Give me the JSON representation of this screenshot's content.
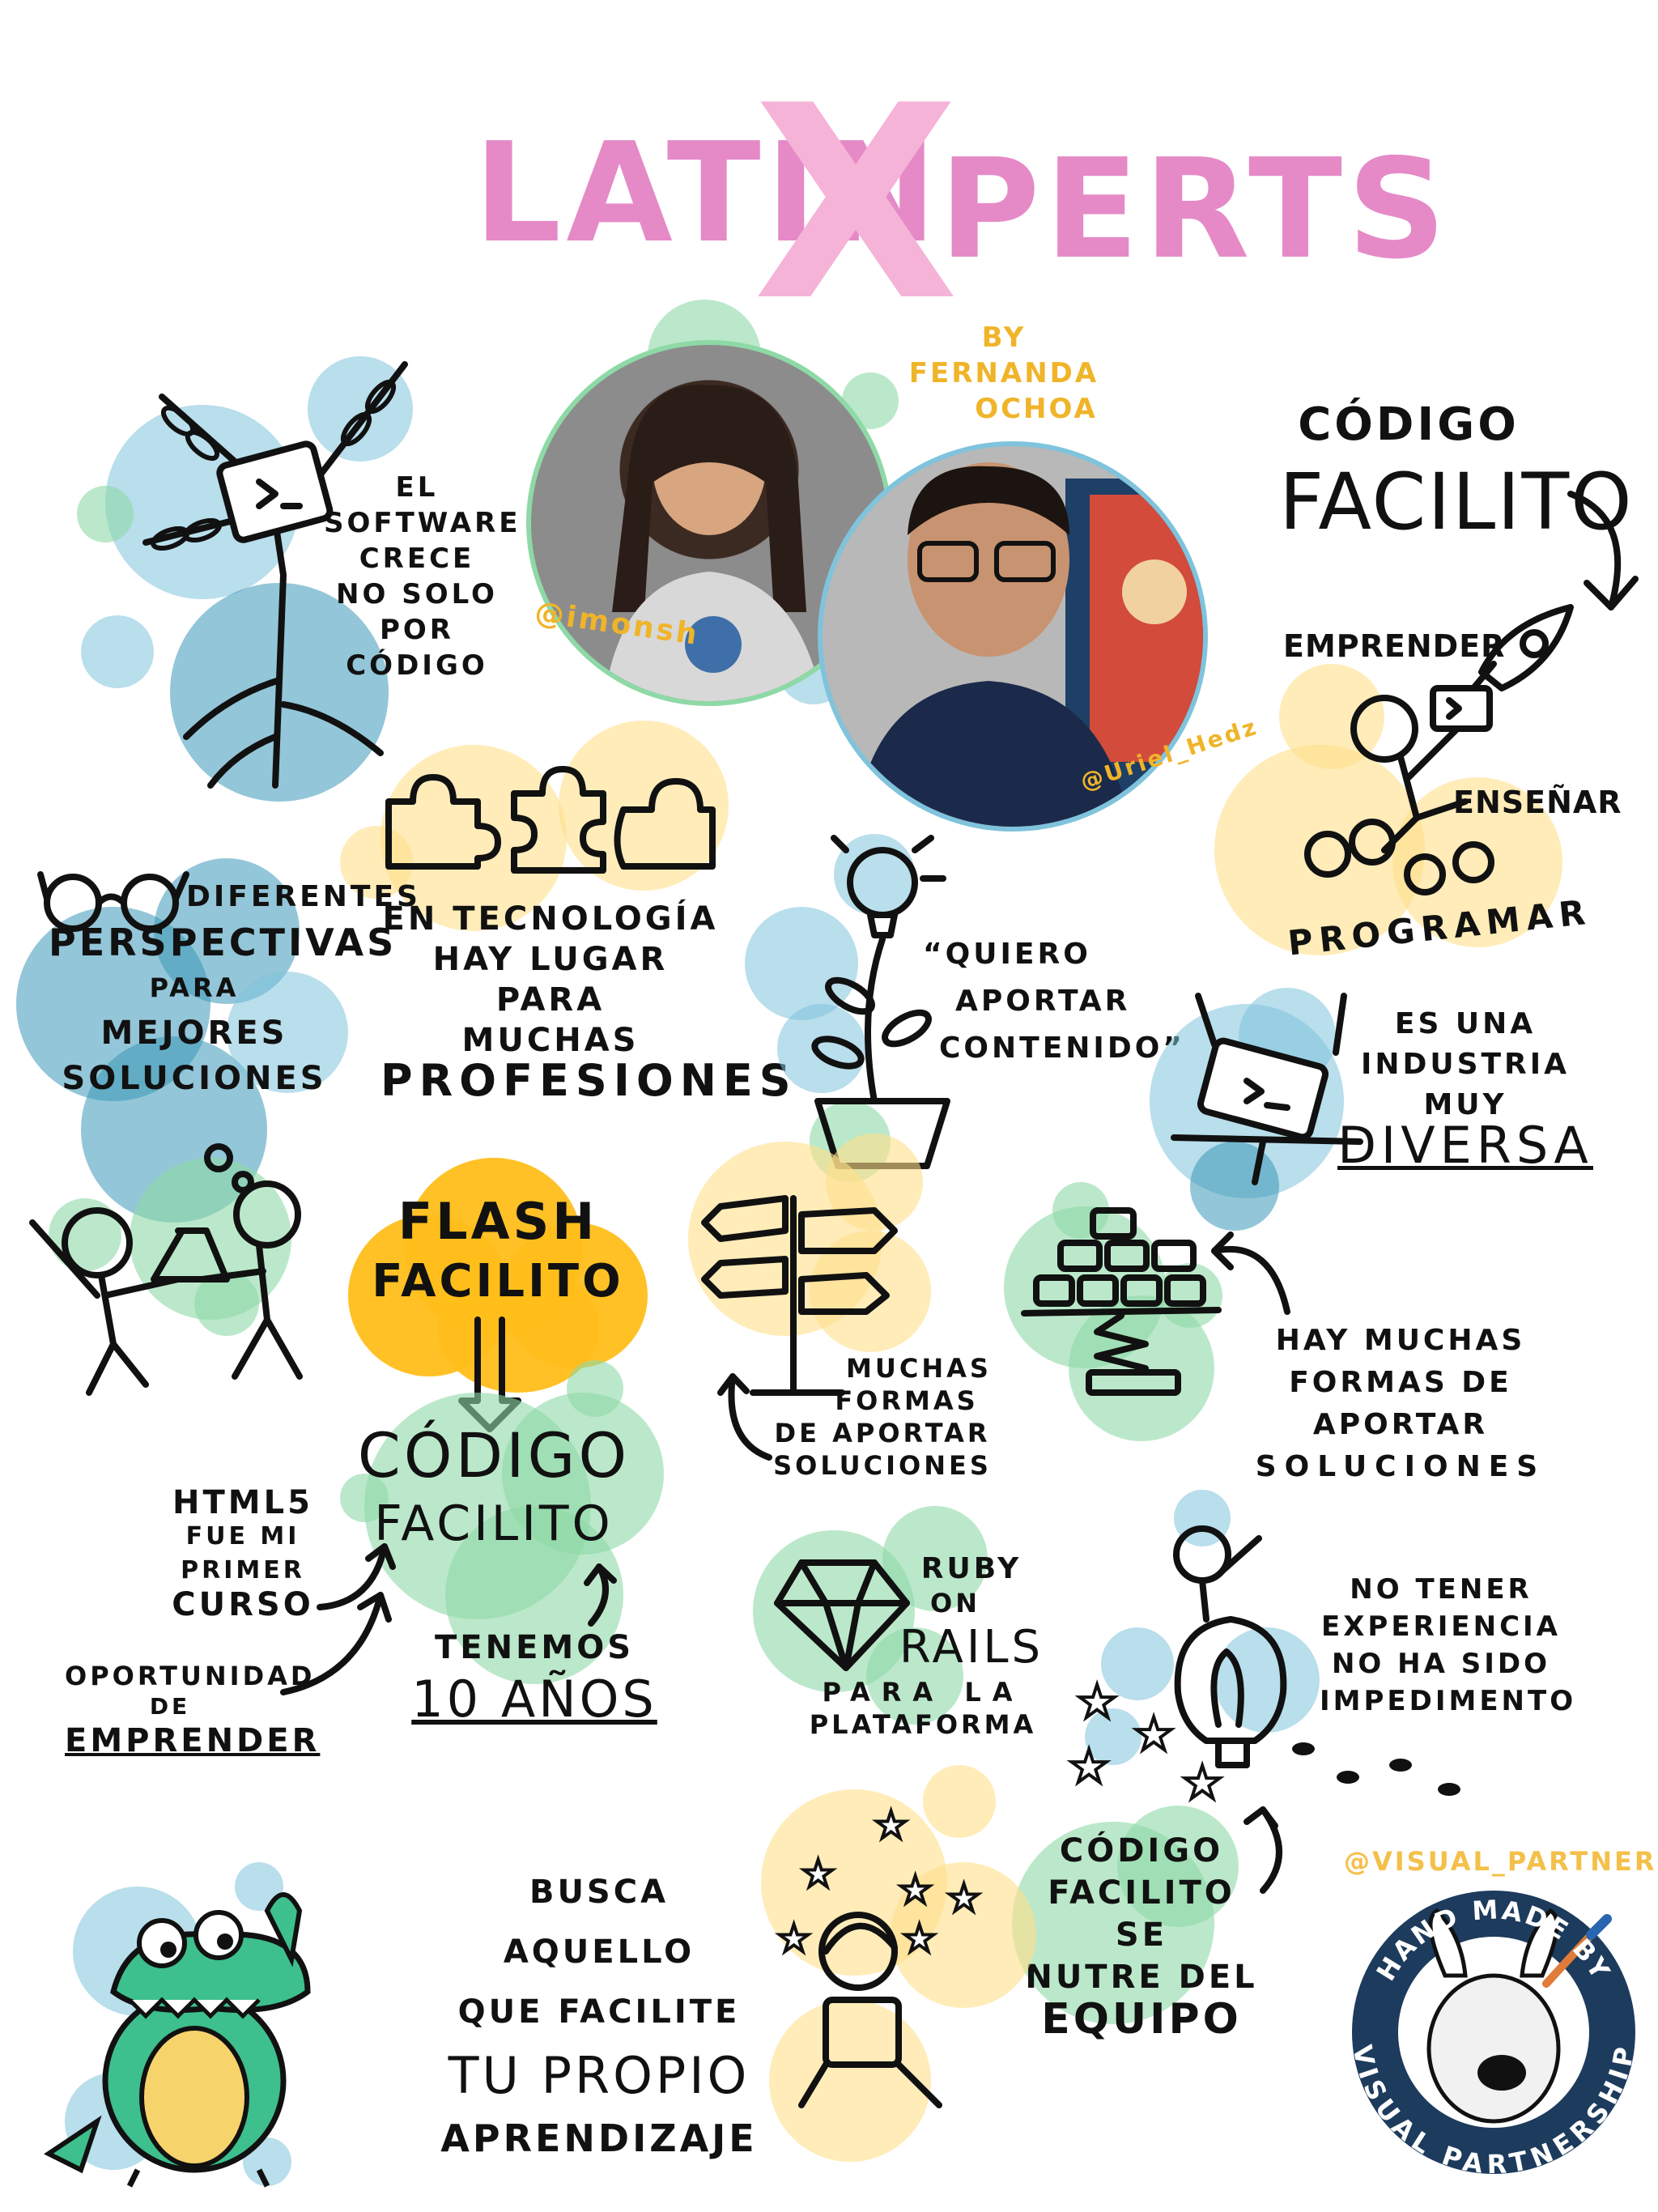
{
  "header": {
    "title_part1": "LATIN",
    "title_x": "X",
    "title_part2": "PERTS",
    "byline_line1": "BY FERNANDA",
    "byline_line2": "OCHOA"
  },
  "handles": {
    "left": "@imonsh",
    "right": "@Uriel_Hedz",
    "partner": "@VISUAL_PARTNER"
  },
  "notes": {
    "software": [
      "EL",
      "SOFTWARE",
      "CRECE",
      "NO SOLO",
      "POR",
      "CÓDIGO"
    ],
    "codigo_facilito_top": [
      "CÓDIGO",
      "FACILITO"
    ],
    "emprender": "EMPRENDER",
    "ensenar": "ENSEÑAR",
    "programar": "PROGRAMAR",
    "perspectivas": [
      "DIFERENTES",
      "PERSPECTIVAS",
      "PARA",
      "MEJORES",
      "SOLUCIONES"
    ],
    "tecnologia": [
      "EN TECNOLOGÍA",
      "HAY LUGAR",
      "PARA",
      "MUCHAS",
      "PROFESIONES"
    ],
    "quiero": [
      "“QUIERO",
      "APORTAR",
      "CONTENIDO”"
    ],
    "diversa": [
      "ES UNA",
      "INDUSTRIA",
      "MUY",
      "DIVERSA"
    ],
    "flash": [
      "FLASH",
      "FACILITO"
    ],
    "codigo_center": [
      "CÓDIGO",
      "FACILITO"
    ],
    "muchas_formas": [
      "MUCHAS",
      "FORMAS",
      "DE APORTAR",
      "SOLUCIONES"
    ],
    "hay_muchas": [
      "HAY MUCHAS",
      "FORMAS DE",
      "APORTAR",
      "SOLUCIONES"
    ],
    "html5": [
      "HTML5",
      "FUE MI",
      "PRIMER",
      "CURSO"
    ],
    "oportunidad": [
      "OPORTUNIDAD",
      "DE",
      "EMPRENDER"
    ],
    "tenemos": [
      "TENEMOS",
      "10 AÑOS"
    ],
    "ruby": [
      "RUBY",
      "ON",
      "RAILS",
      "PARA LA",
      "PLATAFORMA"
    ],
    "experiencia": [
      "NO TENER",
      "EXPERIENCIA",
      "NO HA SIDO",
      "IMPEDIMENTO"
    ],
    "busca": [
      "BUSCA AQUELLO",
      "QUE FACILITE",
      "TU PROPIO",
      "APRENDIZAJE"
    ],
    "nutre": [
      "CÓDIGO",
      "FACILITO SE",
      "NUTRE DEL",
      "EQUIPO"
    ]
  },
  "badge": {
    "top_text": "HAND MADE BY",
    "bottom_text": "VISUAL PARTNERSHIP"
  },
  "colors": {
    "title_pink": "#e58ac7",
    "x_pink": "#f5b3d8",
    "blue": "#7fc3dc",
    "green": "#8ed9a6",
    "yellow": "#ffe08a",
    "orange": "#ffbe1a",
    "badge_navy": "#1d3b5c"
  }
}
